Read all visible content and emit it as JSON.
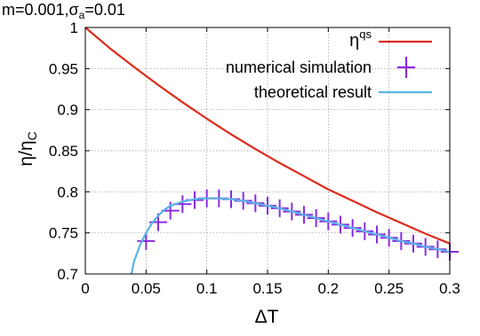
{
  "chart_data": {
    "type": "line",
    "title": "m=0.001,σa=0.01",
    "title_parts": {
      "base": "m=0.001,σ",
      "sub": "a",
      "tail": "=0.01"
    },
    "xlabel": "ΔT",
    "ylabel_parts": {
      "base": "η/η",
      "sub": "C"
    },
    "xlim": [
      0,
      0.3
    ],
    "ylim": [
      0.7,
      1.0
    ],
    "xticks": [
      "0",
      "0.05",
      "0.1",
      "0.15",
      "0.2",
      "0.25",
      "0.3"
    ],
    "yticks": [
      "0.7",
      "0.75",
      "0.8",
      "0.85",
      "0.9",
      "0.95",
      "1"
    ],
    "grid": true,
    "legend_position": "top-right",
    "series": [
      {
        "name_parts": {
          "base": "η",
          "sup": "qs"
        },
        "kind": "line",
        "color": "#dd2a1b",
        "x": [
          0,
          0.02,
          0.04,
          0.06,
          0.08,
          0.1,
          0.12,
          0.14,
          0.16,
          0.18,
          0.2,
          0.22,
          0.24,
          0.26,
          0.28,
          0.3
        ],
        "y": [
          1.0,
          0.975,
          0.952,
          0.93,
          0.909,
          0.889,
          0.87,
          0.852,
          0.835,
          0.819,
          0.803,
          0.789,
          0.775,
          0.762,
          0.749,
          0.737
        ]
      },
      {
        "name": "numerical simulation",
        "kind": "markers",
        "color": "#8a2be2",
        "x": [
          0.05,
          0.06,
          0.07,
          0.08,
          0.09,
          0.1,
          0.11,
          0.12,
          0.13,
          0.14,
          0.15,
          0.16,
          0.17,
          0.18,
          0.19,
          0.2,
          0.21,
          0.22,
          0.23,
          0.24,
          0.25,
          0.26,
          0.27,
          0.28,
          0.29,
          0.3
        ],
        "y": [
          0.74,
          0.763,
          0.777,
          0.785,
          0.79,
          0.792,
          0.792,
          0.791,
          0.789,
          0.786,
          0.783,
          0.78,
          0.776,
          0.772,
          0.768,
          0.764,
          0.76,
          0.756,
          0.752,
          0.748,
          0.744,
          0.74,
          0.737,
          0.733,
          0.73,
          0.727
        ]
      },
      {
        "name": "theoretical result",
        "kind": "line",
        "color": "#5ab4e5",
        "x": [
          0.038,
          0.04,
          0.045,
          0.05,
          0.055,
          0.06,
          0.065,
          0.07,
          0.08,
          0.09,
          0.1,
          0.11,
          0.12,
          0.13,
          0.14,
          0.15,
          0.16,
          0.17,
          0.18,
          0.19,
          0.2,
          0.21,
          0.22,
          0.23,
          0.24,
          0.25,
          0.26,
          0.27,
          0.28,
          0.29,
          0.3
        ],
        "y": [
          0.7,
          0.715,
          0.735,
          0.75,
          0.762,
          0.771,
          0.778,
          0.783,
          0.788,
          0.791,
          0.792,
          0.792,
          0.791,
          0.789,
          0.786,
          0.783,
          0.78,
          0.776,
          0.772,
          0.768,
          0.764,
          0.76,
          0.756,
          0.752,
          0.748,
          0.744,
          0.74,
          0.737,
          0.733,
          0.73,
          0.727
        ]
      }
    ]
  }
}
